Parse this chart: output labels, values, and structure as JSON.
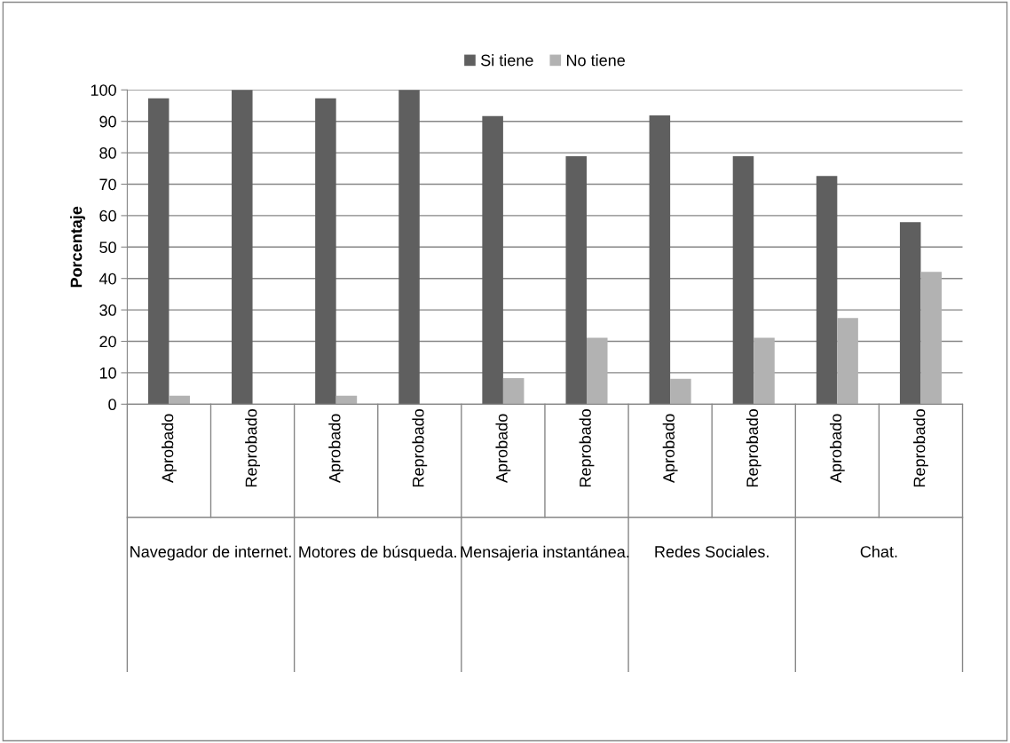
{
  "chart_data": {
    "type": "bar",
    "ylabel": "Porcentaje",
    "categories": [
      "Aprobado",
      "Reprobado",
      "Aprobado",
      "Reprobado",
      "Aprobado",
      "Reprobado",
      "Aprobado",
      "Reprobado",
      "Aprobado",
      "Reprobado"
    ],
    "series": [
      {
        "name": "Si tiene",
        "color": "#5f5f5f",
        "values": [
          97.3,
          100,
          97.3,
          100,
          91.7,
          78.9,
          91.9,
          78.9,
          72.6,
          57.9
        ]
      },
      {
        "name": "No tiene",
        "color": "#b2b2b2",
        "values": [
          2.7,
          0,
          2.7,
          0,
          8.3,
          21.1,
          8.1,
          21.1,
          27.4,
          42.1
        ]
      }
    ],
    "annotations": [
      "Navegador de internet.",
      "Motores de búsqueda.",
      "Mensajeria instantánea.",
      "Redes Sociales.",
      "Chat."
    ],
    "ylim": [
      0,
      100
    ],
    "yticks": [
      0,
      10,
      20,
      30,
      40,
      50,
      60,
      70,
      80,
      90,
      100
    ],
    "grid": "y",
    "legend": "top"
  }
}
